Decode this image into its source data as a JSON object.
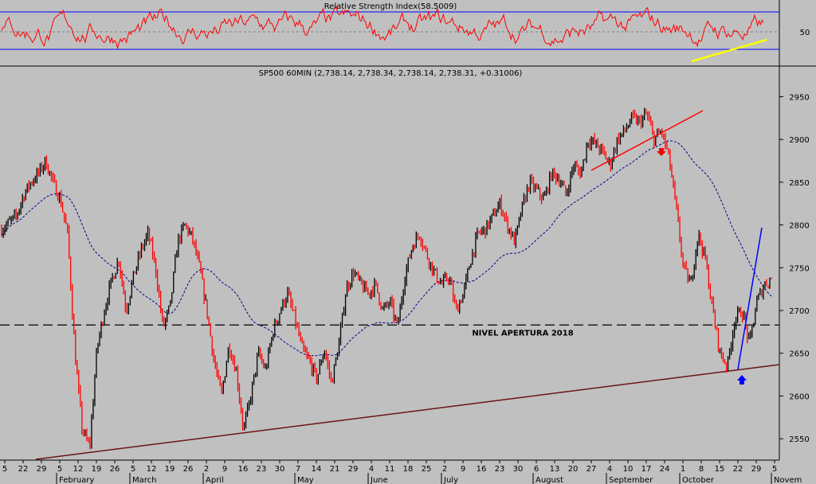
{
  "chart_data": [
    {
      "type": "line",
      "title": "Relative Strength Index(58.5009)",
      "yticks": [
        50
      ],
      "ylim": [
        0,
        100
      ],
      "bands": [
        30,
        70
      ],
      "current": 58.5009,
      "colors": {
        "line": "#ff0000",
        "band": "#0000ff",
        "trend": "#ffff00"
      }
    },
    {
      "type": "line",
      "title": "SP500 60MIN (2,738.14, 2,738.34, 2,738.14, 2,738.31, +0.31006)",
      "ylim": [
        2525,
        2970
      ],
      "yticks": [
        2550,
        2600,
        2650,
        2700,
        2750,
        2800,
        2850,
        2900,
        2950
      ],
      "day_ticks": [
        "5",
        "22",
        "29",
        "5",
        "12",
        "19",
        "26",
        "5",
        "12",
        "19",
        "26",
        "2",
        "9",
        "16",
        "23",
        "30",
        "7",
        "14",
        "21",
        "29",
        "4",
        "11",
        "18",
        "25",
        "2",
        "9",
        "16",
        "23",
        "30",
        "6",
        "13",
        "20",
        "27",
        "4",
        "10",
        "17",
        "24",
        "1",
        "8",
        "15",
        "22",
        "29",
        "5"
      ],
      "months": [
        "February",
        "March",
        "April",
        "May",
        "June",
        "July",
        "August",
        "September",
        "October",
        "Novem"
      ],
      "level": {
        "value": 2683,
        "label": "NIVEL APERTURA 2018"
      },
      "series": [
        {
          "points": [
            [
              0,
              2795
            ],
            [
              2,
              2810
            ],
            [
              3,
              2835
            ],
            [
              4,
              2850
            ],
            [
              5,
              2860
            ],
            [
              6,
              2875
            ],
            [
              7,
              2850
            ],
            [
              8,
              2830
            ],
            [
              9,
              2790
            ],
            [
              10,
              2650
            ],
            [
              11,
              2560
            ],
            [
              12,
              2540
            ],
            [
              13,
              2655
            ],
            [
              14,
              2700
            ],
            [
              15,
              2735
            ],
            [
              16,
              2760
            ],
            [
              17,
              2700
            ],
            [
              18,
              2740
            ],
            [
              19,
              2770
            ],
            [
              20,
              2790
            ],
            [
              21,
              2750
            ],
            [
              22,
              2680
            ],
            [
              23,
              2705
            ],
            [
              24,
              2780
            ],
            [
              25,
              2800
            ],
            [
              26,
              2785
            ],
            [
              27,
              2750
            ],
            [
              28,
              2700
            ],
            [
              29,
              2640
            ],
            [
              30,
              2600
            ],
            [
              31,
              2660
            ],
            [
              32,
              2630
            ],
            [
              33,
              2560
            ],
            [
              34,
              2600
            ],
            [
              35,
              2650
            ],
            [
              36,
              2630
            ],
            [
              37,
              2675
            ],
            [
              38,
              2700
            ],
            [
              39,
              2720
            ],
            [
              40,
              2690
            ],
            [
              41,
              2655
            ],
            [
              42,
              2640
            ],
            [
              43,
              2620
            ],
            [
              44,
              2655
            ],
            [
              45,
              2615
            ],
            [
              46,
              2660
            ],
            [
              47,
              2725
            ],
            [
              48,
              2745
            ],
            [
              49,
              2730
            ],
            [
              50,
              2720
            ],
            [
              51,
              2730
            ],
            [
              52,
              2700
            ],
            [
              53,
              2710
            ],
            [
              54,
              2680
            ],
            [
              55,
              2740
            ],
            [
              56,
              2775
            ],
            [
              57,
              2790
            ],
            [
              58,
              2765
            ],
            [
              59,
              2745
            ],
            [
              60,
              2730
            ],
            [
              61,
              2740
            ],
            [
              62,
              2700
            ],
            [
              63,
              2720
            ],
            [
              64,
              2760
            ],
            [
              65,
              2790
            ],
            [
              66,
              2795
            ],
            [
              67,
              2810
            ],
            [
              68,
              2825
            ],
            [
              69,
              2800
            ],
            [
              70,
              2780
            ],
            [
              71,
              2820
            ],
            [
              72,
              2850
            ],
            [
              73,
              2840
            ],
            [
              74,
              2830
            ],
            [
              75,
              2860
            ],
            [
              76,
              2855
            ],
            [
              77,
              2835
            ],
            [
              78,
              2870
            ],
            [
              79,
              2860
            ],
            [
              80,
              2900
            ],
            [
              81,
              2895
            ],
            [
              82,
              2885
            ],
            [
              83,
              2870
            ],
            [
              84,
              2900
            ],
            [
              85,
              2910
            ],
            [
              86,
              2925
            ],
            [
              87,
              2920
            ],
            [
              88,
              2930
            ],
            [
              89,
              2900
            ],
            [
              90,
              2910
            ],
            [
              91,
              2880
            ],
            [
              92,
              2820
            ],
            [
              93,
              2750
            ],
            [
              94,
              2730
            ],
            [
              95,
              2790
            ],
            [
              96,
              2760
            ],
            [
              97,
              2700
            ],
            [
              98,
              2650
            ],
            [
              99,
              2635
            ],
            [
              100,
              2690
            ],
            [
              101,
              2700
            ],
            [
              102,
              2660
            ],
            [
              103,
              2710
            ],
            [
              104,
              2730
            ],
            [
              105,
              2738
            ]
          ]
        }
      ],
      "colors": {
        "price_up": "#000000",
        "price_down": "#ff0000",
        "ma": "#00008b",
        "support": "#6b1414",
        "resistance": "#ff0000",
        "rebound": "#0000ff",
        "arrow_down": "#ff0000",
        "arrow_up": "#0000ff"
      }
    }
  ]
}
